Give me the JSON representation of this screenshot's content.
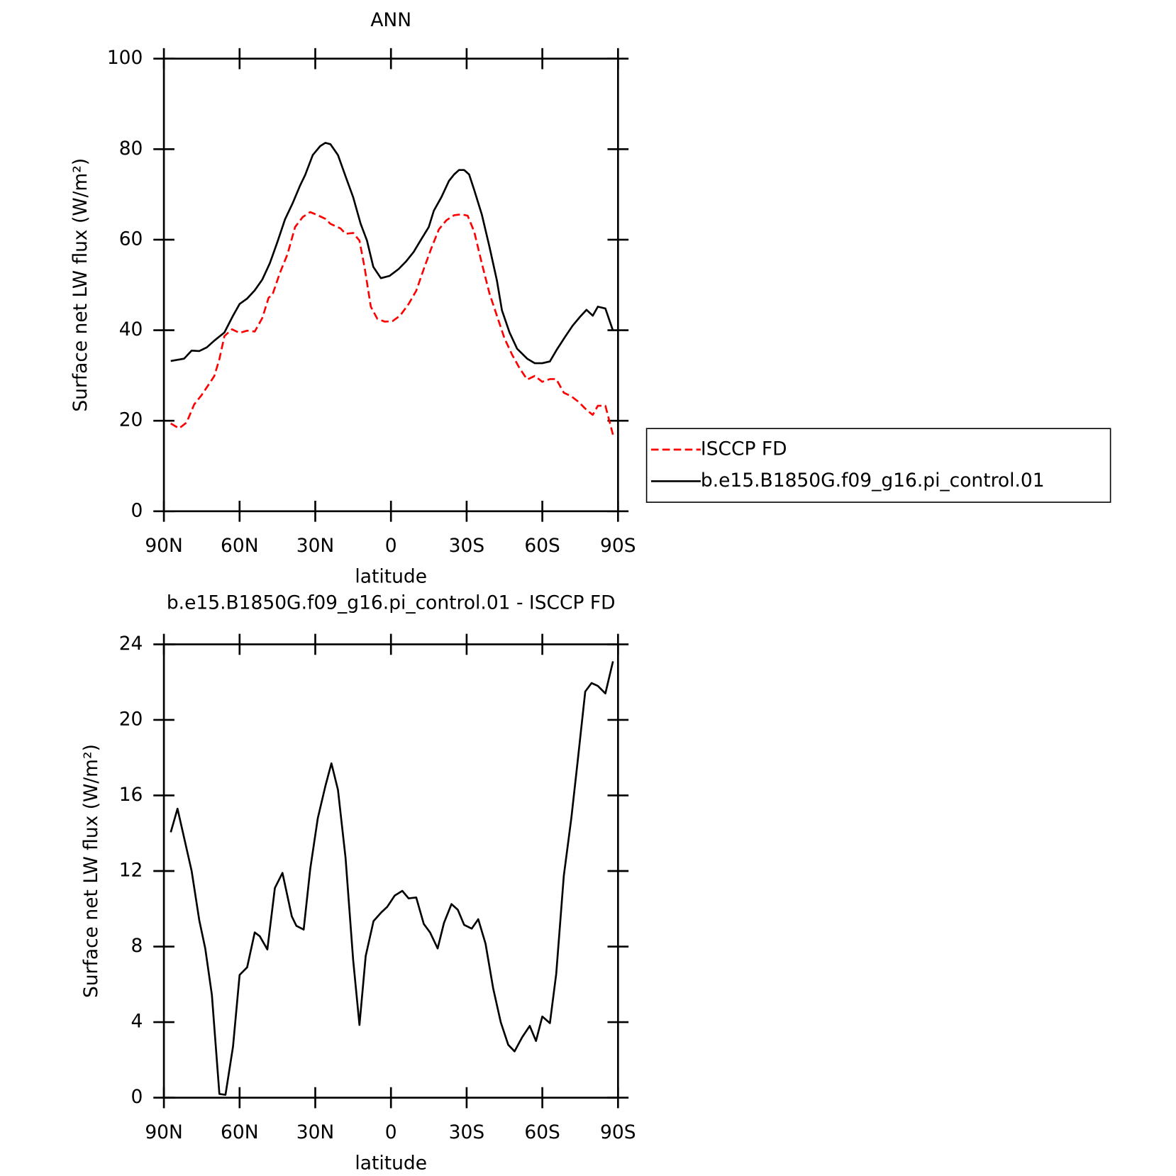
{
  "chart_data": [
    {
      "type": "line",
      "title": "ANN",
      "xlabel": "latitude",
      "ylabel": "Surface net LW flux (W/m²)",
      "xlim": [
        90,
        -90
      ],
      "xticks": [
        {
          "value": 90,
          "label": "90N"
        },
        {
          "value": 60,
          "label": "60N"
        },
        {
          "value": 30,
          "label": "30N"
        },
        0,
        {
          "value": -30,
          "label": "30S"
        },
        {
          "value": -60,
          "label": "60S"
        },
        {
          "value": -90,
          "label": "90S"
        }
      ],
      "ylim": [
        0,
        100
      ],
      "yticks": [
        0,
        20,
        40,
        60,
        80,
        100
      ],
      "legend": "right",
      "series": [
        {
          "name": "ISCCP FD",
          "color": "#ff0000",
          "style": "dashed",
          "x": [
            87.3,
            84,
            81,
            78,
            75,
            71.4,
            70,
            68,
            66,
            63,
            60,
            57,
            54,
            51,
            48.5,
            47,
            44,
            41,
            38,
            35,
            32,
            29,
            26,
            24,
            20,
            18,
            15,
            12.5,
            10.4,
            8,
            5.4,
            2.4,
            -0.6,
            -3.6,
            -7,
            -10,
            -13,
            -16,
            -19,
            -22,
            -25,
            -28,
            -30.4,
            -33,
            -36,
            -39,
            -42,
            -45,
            -48,
            -51,
            -54,
            -57,
            -60,
            -63,
            -65.5,
            -68.5,
            -71.5,
            -74.5,
            -77.5,
            -80,
            -82,
            -85,
            -88
          ],
          "values": [
            19.4,
            18.3,
            19.6,
            23.6,
            25.7,
            28.7,
            29.9,
            33.6,
            38.7,
            40.2,
            39.4,
            39.9,
            39.7,
            42.7,
            47.2,
            47.8,
            52.7,
            56.8,
            62.8,
            65,
            66.1,
            65.4,
            64.6,
            63.5,
            62.5,
            61.3,
            61.5,
            59.8,
            53.7,
            45.2,
            42.5,
            41.9,
            42,
            43.2,
            45.8,
            48.7,
            53.5,
            58.1,
            62.3,
            64.3,
            65.4,
            65.6,
            65.3,
            61.8,
            54.8,
            48.2,
            43.2,
            38.2,
            34.6,
            31.6,
            29.1,
            29.9,
            28.6,
            29.2,
            29.2,
            26.2,
            25.4,
            24.1,
            22.4,
            21.3,
            23.3,
            23.3,
            16.9
          ]
        },
        {
          "name": "b.e15.B1850G.f09_g16.pi_control.01",
          "color": "#000000",
          "style": "solid",
          "x": [
            87.3,
            82,
            79,
            76,
            73,
            70,
            66,
            62.6,
            60,
            57,
            54,
            51,
            48,
            45,
            42,
            39,
            36,
            34,
            31,
            28,
            26,
            24,
            21,
            18,
            15,
            12,
            9.5,
            7,
            4,
            0.6,
            -3,
            -6,
            -9,
            -12,
            -15,
            -17,
            -20,
            -23,
            -25,
            -27,
            -29,
            -31,
            -33,
            -36,
            -39,
            -42,
            -44,
            -47,
            -50,
            -54,
            -57,
            -60,
            -63,
            -65.5,
            -69,
            -72,
            -75,
            -77.5,
            -80,
            -82,
            -85,
            -88
          ],
          "values": [
            33.2,
            33.7,
            35.5,
            35.4,
            36.2,
            37.7,
            39.5,
            43.2,
            45.8,
            47,
            48.8,
            51.2,
            54.8,
            59.5,
            64.5,
            68,
            72,
            74.3,
            78.7,
            80.7,
            81.4,
            81.1,
            78.7,
            74,
            69.4,
            63.5,
            59.8,
            54,
            51.5,
            52,
            53.5,
            55.2,
            57.3,
            60.1,
            62.8,
            66.4,
            69.4,
            73,
            74.4,
            75.4,
            75.4,
            74.4,
            71,
            65.6,
            58.5,
            51,
            44.4,
            39.5,
            35.9,
            33.7,
            32.7,
            32.7,
            33.1,
            35.5,
            38.5,
            41,
            43,
            44.5,
            43.2,
            45.2,
            44.8,
            39.9
          ]
        }
      ]
    },
    {
      "type": "line",
      "title": "b.e15.B1850G.f09_g16.pi_control.01 - ISCCP FD",
      "xlabel": "latitude",
      "ylabel": "Surface net LW flux (W/m²)",
      "xlim": [
        90,
        -90
      ],
      "xticks": [
        {
          "value": 90,
          "label": "90N"
        },
        {
          "value": 60,
          "label": "60N"
        },
        {
          "value": 30,
          "label": "30N"
        },
        0,
        {
          "value": -30,
          "label": "30S"
        },
        {
          "value": -60,
          "label": "60S"
        },
        {
          "value": -90,
          "label": "90S"
        }
      ],
      "ylim": [
        0,
        24
      ],
      "yticks": [
        0,
        4,
        8,
        12,
        16,
        20,
        24
      ],
      "color": "#000000",
      "x": [
        87.3,
        84.6,
        79,
        76,
        73.6,
        71,
        68,
        65.6,
        62.6,
        60,
        57,
        54,
        52,
        49,
        46,
        43,
        39.3,
        37.5,
        34.6,
        32,
        29,
        26,
        23.6,
        21,
        18,
        15,
        12.5,
        10,
        6.9,
        3.9,
        1.5,
        -1.5,
        -4.5,
        -7,
        -10,
        -13,
        -15.5,
        -18.5,
        -21,
        -24,
        -26.5,
        -29,
        -32,
        -34.6,
        -37.5,
        -40.5,
        -43.5,
        -46.5,
        -49,
        -52,
        -55,
        -57.5,
        -60,
        -63,
        -65.5,
        -68.5,
        -71.5,
        -74,
        -77,
        -79.5,
        -82,
        -85,
        -88
      ],
      "values": [
        14.05,
        15.3,
        12,
        9.4,
        7.9,
        5.45,
        0.2,
        0.15,
        2.7,
        6.5,
        6.9,
        8.75,
        8.55,
        7.85,
        11.1,
        11.9,
        9.6,
        9.1,
        8.9,
        12.1,
        14.8,
        16.5,
        17.7,
        16.3,
        12.7,
        7.3,
        3.85,
        7.5,
        9.35,
        9.8,
        10.1,
        10.7,
        10.95,
        10.55,
        10.6,
        9.2,
        8.75,
        7.9,
        9.25,
        10.25,
        9.95,
        9.15,
        8.95,
        9.45,
        8.15,
        5.8,
        4,
        2.8,
        2.45,
        3.2,
        3.8,
        3,
        4.3,
        3.95,
        6.55,
        11.75,
        14.8,
        17.8,
        21.5,
        21.95,
        21.8,
        21.4,
        23.1
      ]
    }
  ]
}
